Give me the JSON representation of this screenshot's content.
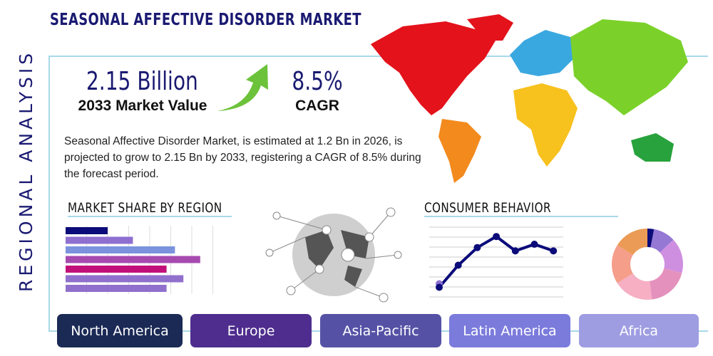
{
  "header": {
    "title": "SEASONAL AFFECTIVE DISORDER MARKET",
    "side_label": "REGIONAL ANALYSIS"
  },
  "stats": {
    "market_value": "2.15 Billion",
    "market_value_label": "2033 Market Value",
    "cagr": "8.5%",
    "cagr_label": "CAGR"
  },
  "description": "Seasonal Affective Disorder Market, is estimated at 1.2 Bn in 2026, is projected to grow to 2.15 Bn by 2033, registering a CAGR of 8.5% during the forecast period.",
  "sections": {
    "market_share": "MARKET SHARE BY REGION",
    "consumer": "CONSUMER BEHAVIOR"
  },
  "regions": [
    {
      "label": "North America",
      "color": "#1b2a55"
    },
    {
      "label": "Europe",
      "color": "#4e2d8e"
    },
    {
      "label": "Asia-Pacific",
      "color": "#5552a6"
    },
    {
      "label": "Latin America",
      "color": "#7b7bdc"
    },
    {
      "label": "Africa",
      "color": "#9e9de2"
    }
  ],
  "graphics": {
    "bars": [
      {
        "value": 2,
        "color": "#0b0b7a"
      },
      {
        "value": 3.2,
        "color": "#8e6fd0"
      },
      {
        "value": 5.2,
        "color": "#7b93dd"
      },
      {
        "value": 6.4,
        "color": "#a64ab0"
      },
      {
        "value": 4.8,
        "color": "#c2107a"
      },
      {
        "value": 5.6,
        "color": "#9070cc"
      },
      {
        "value": 4.8,
        "color": "#9070cc"
      }
    ],
    "line": [
      1,
      3,
      4.6,
      5.6,
      4.3,
      4.9,
      4.3
    ],
    "donut": [
      {
        "value": 3,
        "color": "#0b0b7a"
      },
      {
        "value": 10,
        "color": "#9577d4"
      },
      {
        "value": 16,
        "color": "#cf8fe0"
      },
      {
        "value": 19,
        "color": "#e591bd"
      },
      {
        "value": 18,
        "color": "#f7afc4"
      },
      {
        "value": 18,
        "color": "#f59e8a"
      },
      {
        "value": 16,
        "color": "#eb9b55"
      }
    ]
  }
}
